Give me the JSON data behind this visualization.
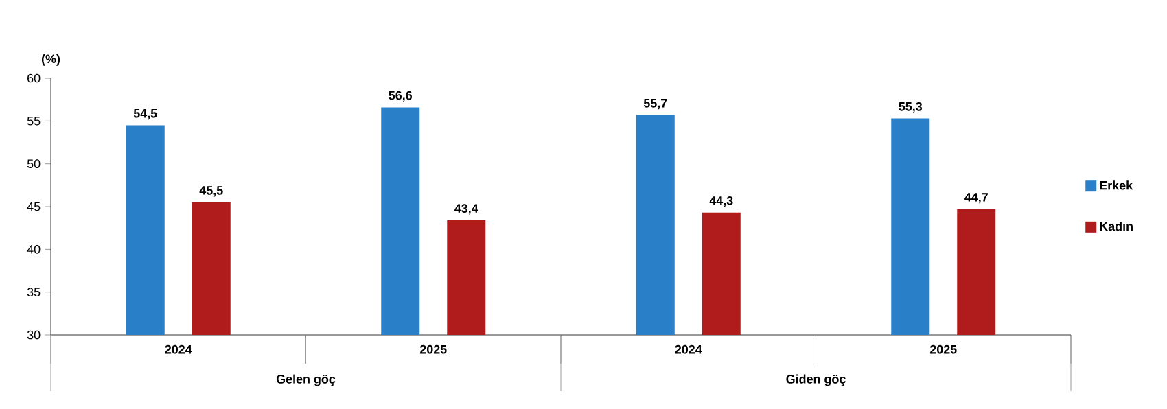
{
  "chart_data": {
    "type": "bar",
    "ylabel": "(%)",
    "categories": [
      "2024",
      "2025",
      "2024",
      "2025"
    ],
    "series": [
      {
        "name": "Erkek",
        "color": "#2a7fc9",
        "values": [
          54.5,
          56.6,
          55.7,
          55.3
        ],
        "value_labels": [
          "54,5",
          "56,6",
          "55,7",
          "55,3"
        ]
      },
      {
        "name": "Kadın",
        "color": "#b01c1c",
        "values": [
          45.5,
          43.4,
          44.3,
          44.7
        ],
        "value_labels": [
          "45,5",
          "43,4",
          "44,3",
          "44,7"
        ]
      }
    ],
    "ylim": [
      30,
      60
    ],
    "yticks": [
      30,
      35,
      40,
      45,
      50,
      55,
      60
    ],
    "legend": "right",
    "annotations": [
      "Gelen göç",
      "Giden göç"
    ]
  }
}
